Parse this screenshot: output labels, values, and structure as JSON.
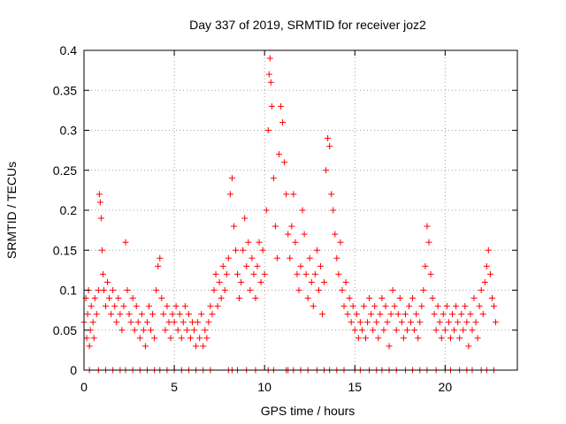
{
  "chart_data": {
    "type": "scatter",
    "title": "Day 337 of 2019, SRMTID for receiver joz2",
    "xlabel": "GPS time / hours",
    "ylabel": "SRMTID / TECUs",
    "xlim": [
      0,
      24
    ],
    "ylim": [
      0,
      0.4
    ],
    "x_ticks": [
      0,
      5,
      10,
      15,
      20
    ],
    "x_tick_labels": [
      "0",
      "5",
      "10",
      "15",
      "20"
    ],
    "y_ticks": [
      0,
      0.05,
      0.1,
      0.15,
      0.2,
      0.25,
      0.3,
      0.35,
      0.4
    ],
    "y_tick_labels": [
      "0",
      "0.05",
      "0.1",
      "0.15",
      "0.2",
      "0.25",
      "0.3",
      "0.35",
      "0.4"
    ],
    "grid": true,
    "marker": "plus",
    "color": "#ff0000",
    "series": [
      {
        "name": "SRMTID",
        "points": [
          [
            0.0,
            0.06
          ],
          [
            0.1,
            0.09
          ],
          [
            0.15,
            0.04
          ],
          [
            0.2,
            0.07
          ],
          [
            0.25,
            0.1
          ],
          [
            0.3,
            0.03
          ],
          [
            0.35,
            0.05
          ],
          [
            0.4,
            0.08
          ],
          [
            0.5,
            0.06
          ],
          [
            0.55,
            0.04
          ],
          [
            0.6,
            0.09
          ],
          [
            0.7,
            0.07
          ],
          [
            0.8,
            0.1
          ],
          [
            0.85,
            0.22
          ],
          [
            0.9,
            0.21
          ],
          [
            0.95,
            0.19
          ],
          [
            1.0,
            0.15
          ],
          [
            1.05,
            0.12
          ],
          [
            1.1,
            0.1
          ],
          [
            1.2,
            0.08
          ],
          [
            1.3,
            0.11
          ],
          [
            1.4,
            0.09
          ],
          [
            1.5,
            0.07
          ],
          [
            1.6,
            0.1
          ],
          [
            1.7,
            0.08
          ],
          [
            1.8,
            0.06
          ],
          [
            1.9,
            0.09
          ],
          [
            2.0,
            0.07
          ],
          [
            2.1,
            0.05
          ],
          [
            2.2,
            0.08
          ],
          [
            2.3,
            0.16
          ],
          [
            2.4,
            0.1
          ],
          [
            2.5,
            0.07
          ],
          [
            2.6,
            0.06
          ],
          [
            2.7,
            0.09
          ],
          [
            2.8,
            0.05
          ],
          [
            2.9,
            0.08
          ],
          [
            3.0,
            0.06
          ],
          [
            3.1,
            0.04
          ],
          [
            3.2,
            0.07
          ],
          [
            3.3,
            0.05
          ],
          [
            3.4,
            0.03
          ],
          [
            3.5,
            0.06
          ],
          [
            3.6,
            0.08
          ],
          [
            3.7,
            0.05
          ],
          [
            3.8,
            0.07
          ],
          [
            3.9,
            0.04
          ],
          [
            4.0,
            0.1
          ],
          [
            4.1,
            0.13
          ],
          [
            4.2,
            0.14
          ],
          [
            4.3,
            0.09
          ],
          [
            4.4,
            0.07
          ],
          [
            4.5,
            0.05
          ],
          [
            4.6,
            0.08
          ],
          [
            4.7,
            0.06
          ],
          [
            4.8,
            0.04
          ],
          [
            4.9,
            0.07
          ],
          [
            5.0,
            0.06
          ],
          [
            5.1,
            0.08
          ],
          [
            5.2,
            0.05
          ],
          [
            5.3,
            0.07
          ],
          [
            5.4,
            0.04
          ],
          [
            5.5,
            0.06
          ],
          [
            5.6,
            0.08
          ],
          [
            5.7,
            0.05
          ],
          [
            5.8,
            0.07
          ],
          [
            5.9,
            0.04
          ],
          [
            6.0,
            0.06
          ],
          [
            6.1,
            0.05
          ],
          [
            6.2,
            0.03
          ],
          [
            6.3,
            0.06
          ],
          [
            6.4,
            0.04
          ],
          [
            6.5,
            0.07
          ],
          [
            6.6,
            0.03
          ],
          [
            6.7,
            0.05
          ],
          [
            6.8,
            0.04
          ],
          [
            6.9,
            0.06
          ],
          [
            7.0,
            0.08
          ],
          [
            7.1,
            0.07
          ],
          [
            7.2,
            0.1
          ],
          [
            7.3,
            0.12
          ],
          [
            7.4,
            0.08
          ],
          [
            7.5,
            0.11
          ],
          [
            7.6,
            0.09
          ],
          [
            7.7,
            0.13
          ],
          [
            7.8,
            0.1
          ],
          [
            7.9,
            0.12
          ],
          [
            8.0,
            0.14
          ],
          [
            8.1,
            0.22
          ],
          [
            8.2,
            0.24
          ],
          [
            8.3,
            0.18
          ],
          [
            8.4,
            0.15
          ],
          [
            8.5,
            0.12
          ],
          [
            8.6,
            0.09
          ],
          [
            8.7,
            0.11
          ],
          [
            8.8,
            0.15
          ],
          [
            8.9,
            0.19
          ],
          [
            9.0,
            0.13
          ],
          [
            9.1,
            0.16
          ],
          [
            9.2,
            0.1
          ],
          [
            9.3,
            0.14
          ],
          [
            9.4,
            0.12
          ],
          [
            9.5,
            0.09
          ],
          [
            9.6,
            0.13
          ],
          [
            9.7,
            0.16
          ],
          [
            9.8,
            0.11
          ],
          [
            9.9,
            0.15
          ],
          [
            10.0,
            0.12
          ],
          [
            10.1,
            0.2
          ],
          [
            10.2,
            0.3
          ],
          [
            10.25,
            0.37
          ],
          [
            10.3,
            0.39
          ],
          [
            10.35,
            0.36
          ],
          [
            10.4,
            0.33
          ],
          [
            10.5,
            0.24
          ],
          [
            10.6,
            0.18
          ],
          [
            10.7,
            0.14
          ],
          [
            10.8,
            0.27
          ],
          [
            10.9,
            0.33
          ],
          [
            11.0,
            0.31
          ],
          [
            11.1,
            0.26
          ],
          [
            11.2,
            0.22
          ],
          [
            11.3,
            0.17
          ],
          [
            11.4,
            0.14
          ],
          [
            11.5,
            0.18
          ],
          [
            11.6,
            0.22
          ],
          [
            11.7,
            0.16
          ],
          [
            11.8,
            0.12
          ],
          [
            11.9,
            0.1
          ],
          [
            12.0,
            0.13
          ],
          [
            12.1,
            0.2
          ],
          [
            12.2,
            0.17
          ],
          [
            12.3,
            0.12
          ],
          [
            12.4,
            0.09
          ],
          [
            12.5,
            0.14
          ],
          [
            12.6,
            0.11
          ],
          [
            12.7,
            0.08
          ],
          [
            12.8,
            0.12
          ],
          [
            12.9,
            0.15
          ],
          [
            13.0,
            0.1
          ],
          [
            13.1,
            0.13
          ],
          [
            13.2,
            0.07
          ],
          [
            13.3,
            0.11
          ],
          [
            13.4,
            0.25
          ],
          [
            13.5,
            0.29
          ],
          [
            13.6,
            0.28
          ],
          [
            13.7,
            0.22
          ],
          [
            13.8,
            0.2
          ],
          [
            13.9,
            0.17
          ],
          [
            14.0,
            0.14
          ],
          [
            14.1,
            0.12
          ],
          [
            14.2,
            0.16
          ],
          [
            14.3,
            0.1
          ],
          [
            14.4,
            0.08
          ],
          [
            14.5,
            0.11
          ],
          [
            14.6,
            0.07
          ],
          [
            14.7,
            0.09
          ],
          [
            14.8,
            0.06
          ],
          [
            14.9,
            0.08
          ],
          [
            15.0,
            0.05
          ],
          [
            15.1,
            0.07
          ],
          [
            15.2,
            0.04
          ],
          [
            15.3,
            0.06
          ],
          [
            15.4,
            0.05
          ],
          [
            15.5,
            0.08
          ],
          [
            15.6,
            0.04
          ],
          [
            15.7,
            0.06
          ],
          [
            15.8,
            0.09
          ],
          [
            15.9,
            0.07
          ],
          [
            16.0,
            0.05
          ],
          [
            16.1,
            0.08
          ],
          [
            16.2,
            0.06
          ],
          [
            16.3,
            0.04
          ],
          [
            16.4,
            0.07
          ],
          [
            16.5,
            0.09
          ],
          [
            16.6,
            0.05
          ],
          [
            16.7,
            0.08
          ],
          [
            16.8,
            0.06
          ],
          [
            16.9,
            0.03
          ],
          [
            17.0,
            0.07
          ],
          [
            17.1,
            0.1
          ],
          [
            17.2,
            0.08
          ],
          [
            17.3,
            0.05
          ],
          [
            17.4,
            0.07
          ],
          [
            17.5,
            0.09
          ],
          [
            17.6,
            0.06
          ],
          [
            17.7,
            0.04
          ],
          [
            17.8,
            0.07
          ],
          [
            17.9,
            0.05
          ],
          [
            18.0,
            0.08
          ],
          [
            18.1,
            0.06
          ],
          [
            18.2,
            0.09
          ],
          [
            18.3,
            0.05
          ],
          [
            18.4,
            0.07
          ],
          [
            18.5,
            0.04
          ],
          [
            18.6,
            0.06
          ],
          [
            18.7,
            0.08
          ],
          [
            18.8,
            0.1
          ],
          [
            18.9,
            0.13
          ],
          [
            19.0,
            0.18
          ],
          [
            19.1,
            0.16
          ],
          [
            19.2,
            0.12
          ],
          [
            19.3,
            0.09
          ],
          [
            19.4,
            0.07
          ],
          [
            19.5,
            0.05
          ],
          [
            19.6,
            0.08
          ],
          [
            19.7,
            0.06
          ],
          [
            19.8,
            0.04
          ],
          [
            19.9,
            0.07
          ],
          [
            20.0,
            0.05
          ],
          [
            20.1,
            0.08
          ],
          [
            20.2,
            0.06
          ],
          [
            20.3,
            0.04
          ],
          [
            20.4,
            0.07
          ],
          [
            20.5,
            0.05
          ],
          [
            20.6,
            0.08
          ],
          [
            20.7,
            0.06
          ],
          [
            20.8,
            0.04
          ],
          [
            20.9,
            0.07
          ],
          [
            21.0,
            0.05
          ],
          [
            21.1,
            0.08
          ],
          [
            21.2,
            0.06
          ],
          [
            21.3,
            0.03
          ],
          [
            21.4,
            0.07
          ],
          [
            21.5,
            0.05
          ],
          [
            21.6,
            0.09
          ],
          [
            21.7,
            0.06
          ],
          [
            21.8,
            0.04
          ],
          [
            21.9,
            0.08
          ],
          [
            22.0,
            0.1
          ],
          [
            22.1,
            0.07
          ],
          [
            22.2,
            0.11
          ],
          [
            22.3,
            0.13
          ],
          [
            22.4,
            0.15
          ],
          [
            22.5,
            0.12
          ],
          [
            22.6,
            0.09
          ],
          [
            22.7,
            0.08
          ],
          [
            22.8,
            0.06
          ]
        ]
      }
    ],
    "zero_points_x": [
      0.3,
      0.8,
      1.2,
      1.6,
      2.0,
      2.3,
      2.7,
      3.1,
      3.5,
      3.9,
      4.2,
      4.6,
      5.0,
      5.4,
      5.8,
      6.2,
      6.6,
      7.0,
      8.0,
      8.2,
      8.5,
      9.0,
      9.5,
      10.2,
      10.5,
      11.2,
      11.3,
      11.6,
      12.0,
      12.4,
      12.9,
      13.3,
      13.6,
      14.0,
      14.4,
      15.0,
      15.3,
      15.8,
      16.2,
      16.5,
      16.9,
      17.3,
      17.8,
      18.2,
      18.6,
      19.0,
      19.5,
      20.0,
      20.3,
      20.8,
      21.2,
      21.5,
      22.0,
      22.3,
      22.7
    ]
  }
}
